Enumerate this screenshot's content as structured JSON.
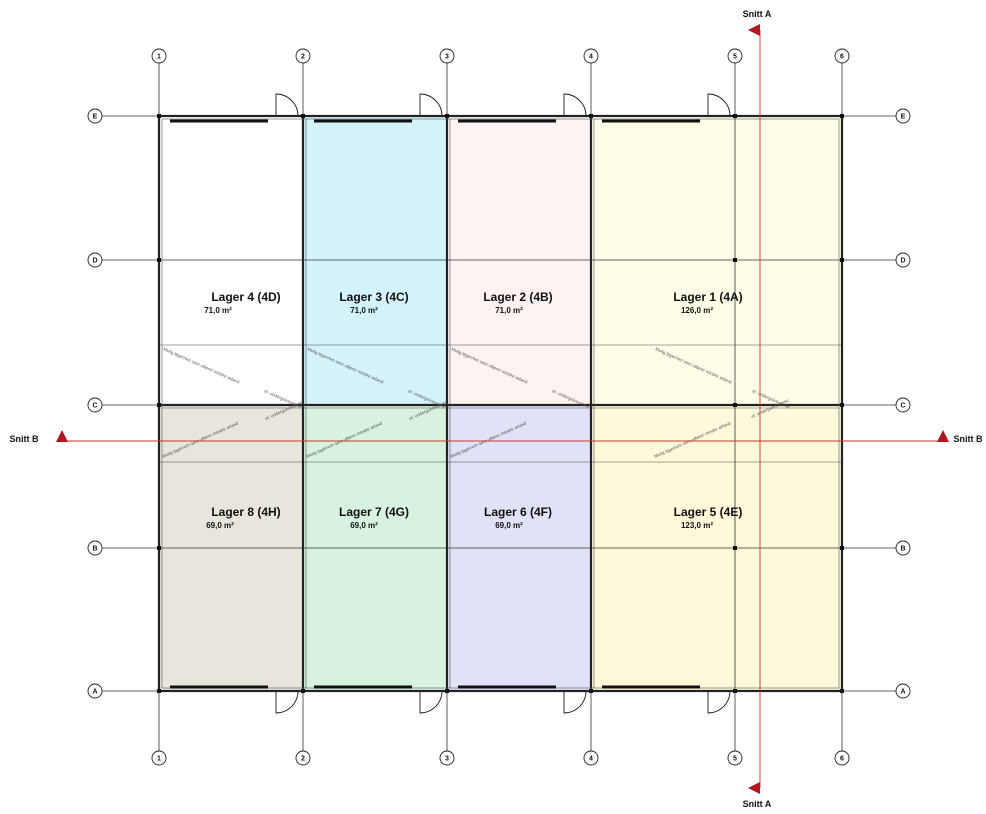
{
  "colors": {
    "wall": "#222222",
    "section_line": "#c0392b",
    "room_4A": "#fefee8",
    "room_4B": "#fdf3f3",
    "room_4C": "#d5f3fc",
    "room_4D": "#ffffff",
    "room_4E": "#fff9dc",
    "room_4F": "#e1e1f8",
    "room_4G": "#d7f3df",
    "room_4H": "#e8e5dc"
  },
  "grid": {
    "columns": [
      "1",
      "2",
      "3",
      "4",
      "5",
      "6"
    ],
    "rows": [
      "E",
      "D",
      "C",
      "B",
      "A"
    ]
  },
  "sections": {
    "a": "Snitt A",
    "b": "Snitt B"
  },
  "rooms": [
    {
      "id": "4D",
      "name": "Lager 4 (4D)",
      "area": "71,0 m²"
    },
    {
      "id": "4C",
      "name": "Lager 3 (4C)",
      "area": "71,0 m²"
    },
    {
      "id": "4B",
      "name": "Lager 2 (4B)",
      "area": "71,0 m²"
    },
    {
      "id": "4A",
      "name": "Lager 1 (4A)",
      "area": "126,0 m²"
    },
    {
      "id": "4H",
      "name": "Lager 8 (4H)",
      "area": "69,0 m²"
    },
    {
      "id": "4G",
      "name": "Lager 7 (4G)",
      "area": "69,0 m²"
    },
    {
      "id": "4F",
      "name": "Lager 6 (4F)",
      "area": "69,0 m²"
    },
    {
      "id": "4E",
      "name": "Lager 5 (4E)",
      "area": "123,0 m²"
    }
  ],
  "notes": {
    "upper": "Mulig lagerrom som utfører mindre arbeid",
    "lower": "Mulig lagerrom som utfører mindre arbeid",
    "short": "el. undergulvsvarme"
  }
}
